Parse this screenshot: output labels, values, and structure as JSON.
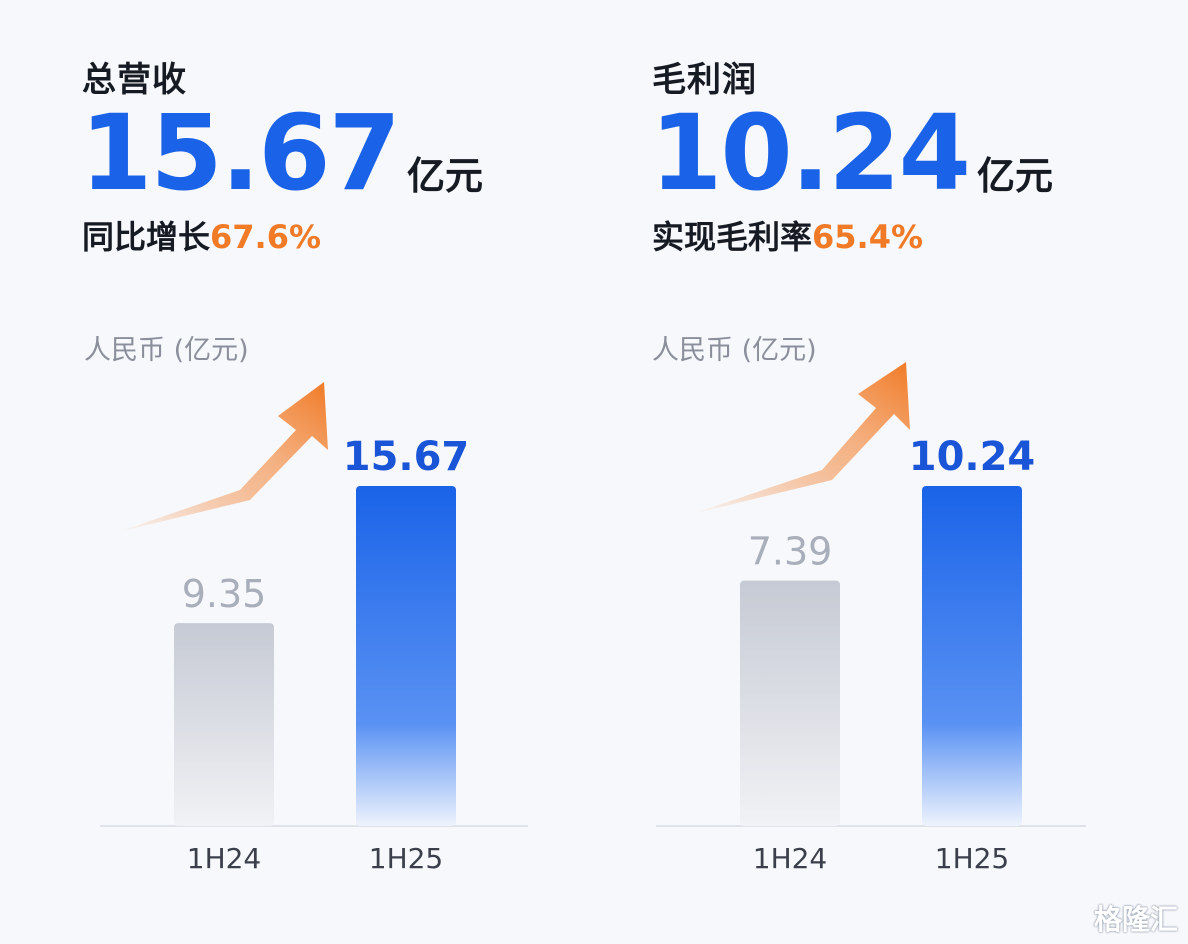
{
  "panels": [
    {
      "title": "总营收",
      "big_value": "15.67",
      "big_unit": "亿元",
      "sub_label": "同比增长",
      "sub_value": "67.6%",
      "unit_caption": "人民币 (亿元)"
    },
    {
      "title": "毛利润",
      "big_value": "10.24",
      "big_unit": "亿元",
      "sub_label": "实现毛利率",
      "sub_value": "65.4%",
      "unit_caption": "人民币 (亿元)"
    }
  ],
  "colors": {
    "accent_blue": "#1a63e8",
    "accent_orange": "#f07a26",
    "bar_gray": "#c6cad4"
  },
  "watermark": "格隆汇",
  "chart_data": [
    {
      "type": "bar",
      "title": "",
      "categories": [
        "1H24",
        "1H25"
      ],
      "values": [
        9.35,
        15.67
      ],
      "value_labels": [
        "9.35",
        "15.67"
      ],
      "ylabel": "人民币 (亿元)",
      "ylim": [
        0,
        17.5
      ],
      "grid": false
    },
    {
      "type": "bar",
      "title": "",
      "categories": [
        "1H24",
        "1H25"
      ],
      "values": [
        7.39,
        10.24
      ],
      "value_labels": [
        "7.39",
        "10.24"
      ],
      "ylabel": "人民币 (亿元)",
      "ylim": [
        0,
        11.5
      ],
      "grid": false
    }
  ]
}
